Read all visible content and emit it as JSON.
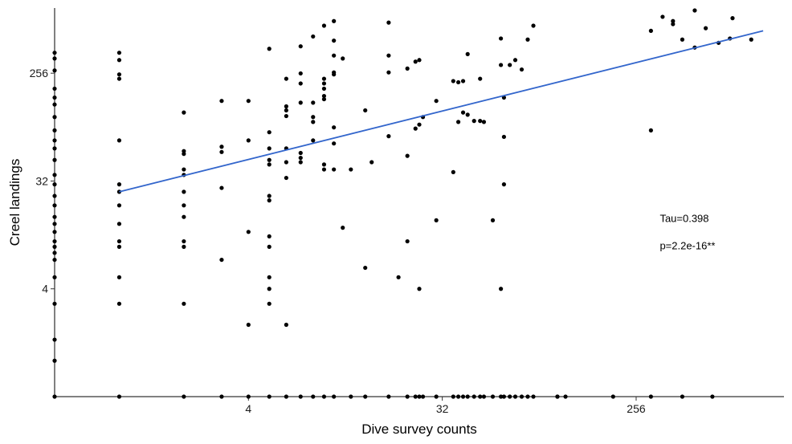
{
  "chart_data": {
    "type": "scatter",
    "title": "",
    "xlabel": "Dive survey counts",
    "ylabel": "Creel landings",
    "x_scale": "log2",
    "y_scale": "log2",
    "xlim": [
      0.5,
      1250
    ],
    "ylim": [
      0.5,
      900
    ],
    "x_ticks": [
      4,
      32,
      256
    ],
    "y_ticks": [
      4,
      32,
      256
    ],
    "x_tick_labels": [
      "4",
      "32",
      "256"
    ],
    "y_tick_labels": [
      "4",
      "32",
      "256"
    ],
    "grid": false,
    "colors": {
      "points": "#000000",
      "fit": "#3366CC"
    },
    "annotations": [
      {
        "text": "Tau=0.398",
        "x": 330,
        "y": 14.5
      },
      {
        "text": "p=2.2e-16**",
        "x": 330,
        "y": 8.6
      }
    ],
    "fit_line": {
      "x": [
        1,
        1000
      ],
      "y": [
        26,
        580
      ]
    },
    "points": [
      [
        0.5,
        0.5
      ],
      [
        0.5,
        1
      ],
      [
        0.5,
        1.5
      ],
      [
        0.5,
        3
      ],
      [
        0.5,
        5
      ],
      [
        0.5,
        7
      ],
      [
        0.5,
        8
      ],
      [
        0.5,
        9
      ],
      [
        0.5,
        10
      ],
      [
        0.5,
        12
      ],
      [
        0.5,
        14
      ],
      [
        0.5,
        16
      ],
      [
        0.5,
        20
      ],
      [
        0.5,
        24
      ],
      [
        0.5,
        30
      ],
      [
        0.5,
        36
      ],
      [
        0.5,
        48
      ],
      [
        0.5,
        60
      ],
      [
        0.5,
        70
      ],
      [
        0.5,
        85
      ],
      [
        0.5,
        110
      ],
      [
        0.5,
        140
      ],
      [
        0.5,
        160
      ],
      [
        0.5,
        190
      ],
      [
        0.5,
        270
      ],
      [
        0.5,
        340
      ],
      [
        0.5,
        380
      ],
      [
        1,
        0.5
      ],
      [
        1,
        3
      ],
      [
        1,
        5
      ],
      [
        1,
        9
      ],
      [
        1,
        10
      ],
      [
        1,
        14
      ],
      [
        1,
        20
      ],
      [
        1,
        26
      ],
      [
        1,
        30
      ],
      [
        1,
        70
      ],
      [
        1,
        230
      ],
      [
        1,
        250
      ],
      [
        1,
        330
      ],
      [
        1,
        380
      ],
      [
        2,
        0.5
      ],
      [
        2,
        3
      ],
      [
        2,
        9
      ],
      [
        2,
        10
      ],
      [
        2,
        16
      ],
      [
        2,
        20
      ],
      [
        2,
        26
      ],
      [
        2,
        36
      ],
      [
        2,
        40
      ],
      [
        2,
        54
      ],
      [
        2,
        57
      ],
      [
        2,
        120
      ],
      [
        3,
        0.5
      ],
      [
        3,
        7
      ],
      [
        3,
        28
      ],
      [
        3,
        56
      ],
      [
        3,
        62
      ],
      [
        3,
        150
      ],
      [
        4,
        0.5
      ],
      [
        4,
        2
      ],
      [
        4,
        12
      ],
      [
        4,
        70
      ],
      [
        4,
        150
      ],
      [
        5,
        0.5
      ],
      [
        5,
        3
      ],
      [
        5,
        4
      ],
      [
        5,
        5
      ],
      [
        5,
        9
      ],
      [
        5,
        11
      ],
      [
        5,
        22
      ],
      [
        5,
        24
      ],
      [
        5,
        44
      ],
      [
        5,
        48
      ],
      [
        5,
        60
      ],
      [
        5,
        82
      ],
      [
        5,
        410
      ],
      [
        6,
        0.5
      ],
      [
        6,
        2
      ],
      [
        6,
        34
      ],
      [
        6,
        46
      ],
      [
        6,
        60
      ],
      [
        6,
        112
      ],
      [
        6,
        125
      ],
      [
        6,
        135
      ],
      [
        6,
        230
      ],
      [
        7,
        0.5
      ],
      [
        7,
        46
      ],
      [
        7,
        50
      ],
      [
        7,
        55
      ],
      [
        7,
        145
      ],
      [
        7,
        210
      ],
      [
        7,
        255
      ],
      [
        7,
        430
      ],
      [
        8,
        0.5
      ],
      [
        8,
        70
      ],
      [
        8,
        100
      ],
      [
        8,
        110
      ],
      [
        8,
        145
      ],
      [
        8,
        520
      ],
      [
        9,
        0.5
      ],
      [
        9,
        40
      ],
      [
        9,
        44
      ],
      [
        9,
        155
      ],
      [
        9,
        165
      ],
      [
        9,
        190
      ],
      [
        9,
        210
      ],
      [
        9,
        230
      ],
      [
        9,
        640
      ],
      [
        10,
        0.5
      ],
      [
        10,
        40
      ],
      [
        10,
        66
      ],
      [
        10,
        90
      ],
      [
        10,
        250
      ],
      [
        10,
        260
      ],
      [
        10,
        360
      ],
      [
        10,
        480
      ],
      [
        10,
        700
      ],
      [
        11,
        13
      ],
      [
        11,
        340
      ],
      [
        12,
        0.5
      ],
      [
        12,
        40
      ],
      [
        14,
        0.5
      ],
      [
        14,
        6
      ],
      [
        14,
        125
      ],
      [
        15,
        46
      ],
      [
        18,
        0.5
      ],
      [
        18,
        76
      ],
      [
        18,
        360
      ],
      [
        18,
        260
      ],
      [
        18,
        680
      ],
      [
        20,
        5
      ],
      [
        22,
        0.5
      ],
      [
        22,
        10
      ],
      [
        22,
        52
      ],
      [
        22,
        280
      ],
      [
        24,
        0.5
      ],
      [
        24,
        88
      ],
      [
        24,
        320
      ],
      [
        25,
        0.5
      ],
      [
        25,
        4
      ],
      [
        25,
        330
      ],
      [
        25,
        95
      ],
      [
        26,
        0.5
      ],
      [
        26,
        110
      ],
      [
        30,
        0.5
      ],
      [
        30,
        15
      ],
      [
        30,
        150
      ],
      [
        36,
        0.5
      ],
      [
        36,
        38
      ],
      [
        36,
        220
      ],
      [
        38,
        0.5
      ],
      [
        38,
        100
      ],
      [
        38,
        215
      ],
      [
        40,
        0.5
      ],
      [
        40,
        220
      ],
      [
        40,
        120
      ],
      [
        42,
        0.5
      ],
      [
        42,
        370
      ],
      [
        42,
        115
      ],
      [
        45,
        0.5
      ],
      [
        45,
        102
      ],
      [
        48,
        0.5
      ],
      [
        48,
        102
      ],
      [
        48,
        230
      ],
      [
        50,
        0.5
      ],
      [
        50,
        100
      ],
      [
        55,
        0.5
      ],
      [
        55,
        15
      ],
      [
        60,
        0.5
      ],
      [
        60,
        4
      ],
      [
        60,
        300
      ],
      [
        60,
        500
      ],
      [
        62,
        0.5
      ],
      [
        62,
        30
      ],
      [
        62,
        75
      ],
      [
        62,
        160
      ],
      [
        66,
        0.5
      ],
      [
        66,
        300
      ],
      [
        70,
        0.5
      ],
      [
        70,
        330
      ],
      [
        75,
        0.5
      ],
      [
        75,
        275
      ],
      [
        80,
        0.5
      ],
      [
        80,
        490
      ],
      [
        85,
        0.5
      ],
      [
        85,
        640
      ],
      [
        110,
        0.5
      ],
      [
        110,
        0.5
      ],
      [
        120,
        0.5
      ],
      [
        200,
        0.5
      ],
      [
        300,
        0.5
      ],
      [
        300,
        85
      ],
      [
        300,
        580
      ],
      [
        340,
        760
      ],
      [
        380,
        660
      ],
      [
        380,
        700
      ],
      [
        420,
        490
      ],
      [
        480,
        420
      ],
      [
        480,
        860
      ],
      [
        420,
        0.5
      ],
      [
        580,
        0.5
      ],
      [
        540,
        610
      ],
      [
        620,
        460
      ],
      [
        700,
        500
      ],
      [
        720,
        740
      ],
      [
        880,
        490
      ]
    ]
  }
}
